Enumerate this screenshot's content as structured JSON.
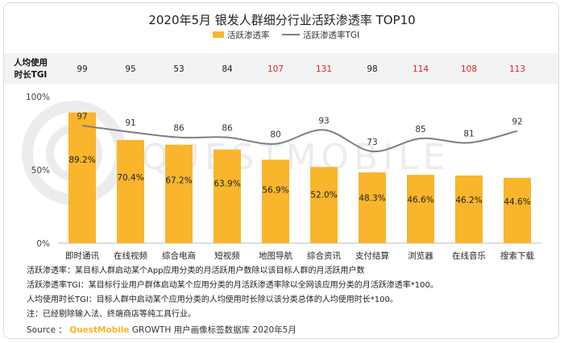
{
  "colors": {
    "bar": "#F9B52B",
    "tgi_line": "#7f7f7f",
    "above_100": "#e02424",
    "normal": "#222222",
    "brand": "#F9B52B"
  },
  "chart_data": {
    "type": "bar",
    "title": "2020年5月 银发人群细分行业活跃渗透率 TOP10",
    "categories": [
      "即时通讯",
      "在线视频",
      "综合电商",
      "短视频",
      "地图导航",
      "综合资讯",
      "支付结算",
      "浏览器",
      "在线音乐",
      "搜索下载"
    ],
    "series": [
      {
        "name": "活跃渗透率",
        "type": "bar",
        "values": [
          89.2,
          70.4,
          67.2,
          63.9,
          56.9,
          52.0,
          48.3,
          46.6,
          46.2,
          44.6
        ],
        "labels": [
          "89.2%",
          "70.4%",
          "67.2%",
          "63.9%",
          "56.9%",
          "52.0%",
          "48.3%",
          "46.6%",
          "46.2%",
          "44.6%"
        ]
      },
      {
        "name": "活跃渗透率TGI",
        "type": "line",
        "values": [
          97,
          91,
          86,
          86,
          80,
          93,
          73,
          85,
          81,
          92
        ]
      }
    ],
    "usage_time_tgi": {
      "label_line1": "人均使用",
      "label_line2": "时长TGI",
      "values": [
        99,
        95,
        53,
        84,
        107,
        131,
        98,
        114,
        108,
        113
      ]
    },
    "yticks": [
      "100%",
      "50%",
      "0%"
    ],
    "ylim": [
      0,
      100
    ],
    "legend_position": "top"
  },
  "notes": [
    "活跃渗透率：某目标人群启动某个App应用分类的月活跃用户数除以该目标人群的月活跃用户数",
    "活跃渗透率TGI：某目标行业用户群体启动某个应用分类的月活跃渗透率除以全网该应用分类的月活跃渗透率*100。",
    "人均使用时长TGI：目标人群中启动某个应用分类的人均使用时长除以该分类总体的人均使用时长*100。",
    "注：已经剔除输入法、终端商店等纯工具行业。"
  ],
  "source": {
    "prefix": "Source",
    "brand": "QuestMobile",
    "suffix": " GROWTH 用户画像标签数据库 2020年5月"
  },
  "watermark": "QUESTMOBILE"
}
